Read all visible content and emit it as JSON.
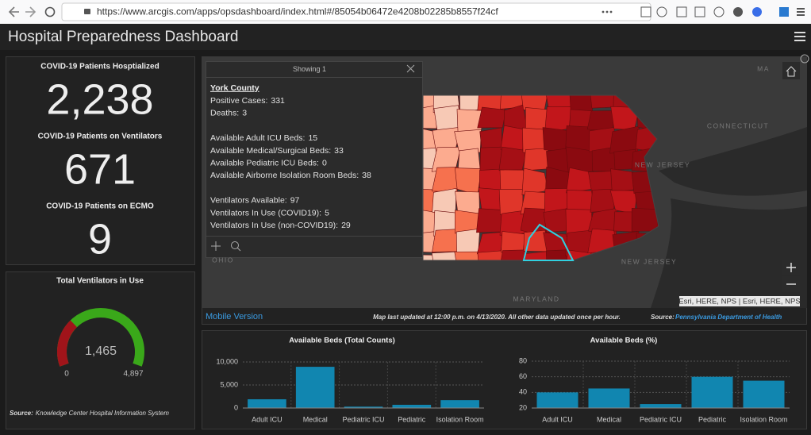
{
  "browser": {
    "url": "https://www.arcgis.com/apps/opsdashboard/index.html#/85054b06472e4208b02285b8557f24cf"
  },
  "header": {
    "title": "Hospital Preparedness Dashboard"
  },
  "indicators": [
    {
      "label": "COVID-19 Patients Hosptialized",
      "value": "2,238"
    },
    {
      "label": "COVID-19 Patients on Ventilators",
      "value": "671"
    },
    {
      "label": "COVID-19 Patients on ECMO",
      "value": "9"
    }
  ],
  "gauge": {
    "title": "Total Ventilators in Use",
    "value": 1465,
    "value_label": "1,465",
    "min": 0,
    "max": 4897,
    "max_label": "4,897",
    "source_label": "Source:",
    "source": "Knowledge Center Hospital Information System"
  },
  "popup": {
    "header": "Showing 1",
    "title": "York County",
    "groups": [
      [
        {
          "label": "Positive Cases:",
          "value": "331"
        },
        {
          "label": "Deaths:",
          "value": "3"
        }
      ],
      [
        {
          "label": "Available Adult ICU Beds:",
          "value": "15"
        },
        {
          "label": "Available Medical/Surgical Beds:",
          "value": "33"
        },
        {
          "label": "Available Pediatric ICU Beds:",
          "value": "0"
        },
        {
          "label": "Available Airborne Isolation Room Beds:",
          "value": "38"
        }
      ],
      [
        {
          "label": "Ventilators Available:",
          "value": "97"
        },
        {
          "label": "Ventilators In Use (COVID19):",
          "value": "5"
        },
        {
          "label": "Ventilators In Use (non-COVID19):",
          "value": "29"
        }
      ]
    ]
  },
  "map": {
    "labels": [
      "MA",
      "CONNECTICUT",
      "NEW JERSEY",
      "NEW JERSEY",
      "OHIO",
      "MARYLAND"
    ],
    "attribution": "Esri, HERE, NPS | Esri, HERE, NPS",
    "mobile_link": "Mobile Version",
    "note": "Map last updated at 12:00 p.m. on 4/13/2020. All other data updated once per hour.",
    "source_label": "Source:",
    "source": "Pennsylvania Department of Health"
  },
  "chart_data": [
    {
      "type": "bar",
      "title": "Available Beds (Total Counts)",
      "categories": [
        "Adult ICU",
        "Medical",
        "Pediatric ICU",
        "Pediatric",
        "Isolation Room"
      ],
      "values": [
        1900,
        8950,
        300,
        700,
        1700
      ],
      "color": "#1186b0",
      "ylim": [
        0,
        10000
      ],
      "yticks": [
        0,
        {
          "value": 5000,
          "label": "5,000"
        },
        {
          "value": 10000,
          "label": "10,000"
        }
      ],
      "grid": true
    },
    {
      "type": "bar",
      "title": "Available Beds (%)",
      "categories": [
        "Adult ICU",
        "Medical",
        "Pediatric ICU",
        "Pediatric",
        "Isolation Room"
      ],
      "values": [
        40,
        45,
        25,
        60,
        55
      ],
      "color": "#1186b0",
      "ylim": [
        20,
        80
      ],
      "yticks": [
        20,
        40,
        60,
        80
      ],
      "grid": true
    }
  ]
}
